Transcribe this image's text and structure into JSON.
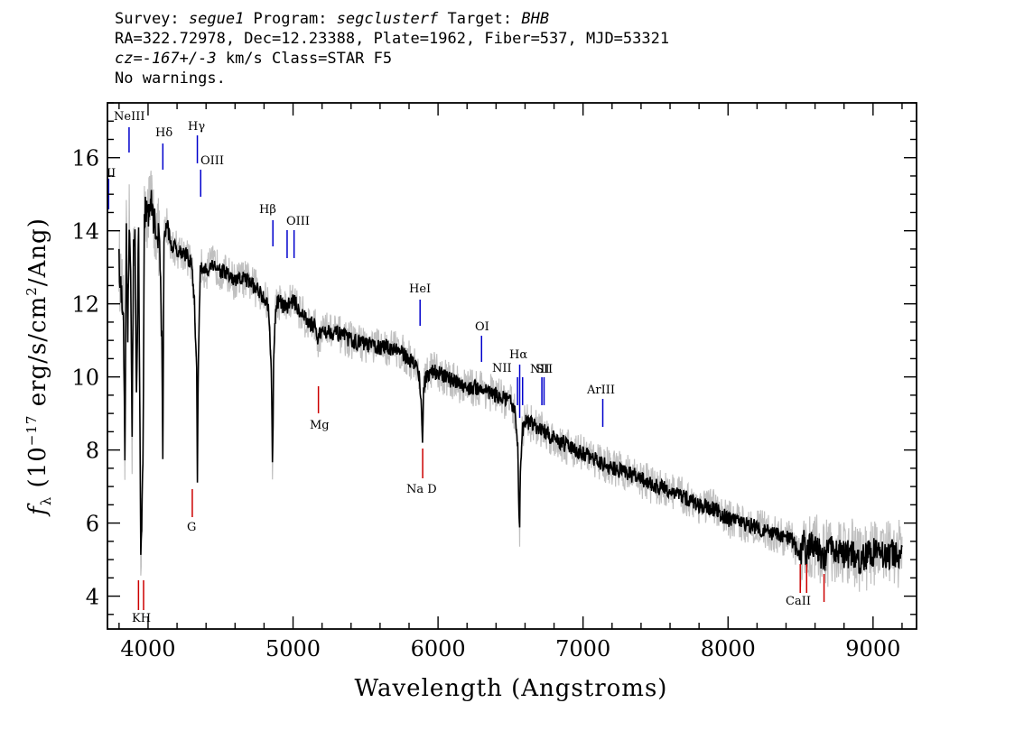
{
  "header": {
    "survey_label": "Survey: ",
    "survey": "segue1",
    "program_label": " Program: ",
    "program": "segclusterf",
    "target_label": " Target: ",
    "target": "BHB",
    "coords": "RA=322.72978, Dec=12.23388, Plate=1962, Fiber=537, MJD=53321",
    "cz": "cz=-167+/-3",
    "cz_units": " km/s Class=STAR F5",
    "warnings": "No warnings."
  },
  "chart_data": {
    "type": "line",
    "xlabel": "Wavelength (Angstroms)",
    "ylabel_prefix": "f",
    "ylabel_sub": "λ",
    "ylabel_mid": " (10",
    "ylabel_exp": "−17",
    "ylabel_rest": " erg/s/cm",
    "ylabel_exp2": "2",
    "ylabel_end": "/Ang)",
    "xlim": [
      3720,
      9300
    ],
    "ylim": [
      3.1,
      17.5
    ],
    "x_ticks": [
      4000,
      5000,
      6000,
      7000,
      8000,
      9000
    ],
    "y_ticks": [
      4,
      6,
      8,
      10,
      12,
      14,
      16
    ],
    "grid": false,
    "colors": {
      "flux": "#000000",
      "error": "#c0c0c0",
      "emission": "#0000cc",
      "absorption": "#cc0000"
    },
    "series": [
      {
        "x": [
          3800,
          3815,
          3830,
          3840,
          3850,
          3860,
          3870,
          3880,
          3890,
          3900,
          3910,
          3920,
          3935,
          3950,
          3965,
          3975,
          3985,
          4000,
          4020,
          4040,
          4060,
          4080,
          4095,
          4102,
          4110,
          4130,
          4160,
          4200,
          4250,
          4300,
          4320,
          4335,
          4340,
          4345,
          4360,
          4400,
          4450,
          4500,
          4550,
          4600,
          4650,
          4700,
          4750,
          4800,
          4830,
          4850,
          4858,
          4862,
          4866,
          4880,
          4900,
          4950,
          5000,
          5050,
          5100,
          5150,
          5170,
          5200,
          5300,
          5400,
          5500,
          5600,
          5700,
          5800,
          5850,
          5870,
          5880,
          5893,
          5900,
          5920,
          5950,
          6000,
          6100,
          6200,
          6300,
          6400,
          6450,
          6500,
          6530,
          6550,
          6558,
          6563,
          6568,
          6580,
          6600,
          6700,
          6800,
          6900,
          7000,
          7100,
          7200,
          7300,
          7400,
          7500,
          7600,
          7700,
          7800,
          7900,
          8000,
          8100,
          8200,
          8300,
          8400,
          8450,
          8498,
          8520,
          8542,
          8560,
          8600,
          8662,
          8700,
          8750,
          8800,
          8850,
          8900,
          8950,
          9000,
          9050,
          9100,
          9150,
          9200
        ],
        "y": [
          13.2,
          12.3,
          12.0,
          7.6,
          13.8,
          11.3,
          14.2,
          12.8,
          8.3,
          13.8,
          14.1,
          9.5,
          13.9,
          5.0,
          8.0,
          14.3,
          14.6,
          14.5,
          14.8,
          14.3,
          14.0,
          13.7,
          11.0,
          7.9,
          13.8,
          14.2,
          13.6,
          13.5,
          13.4,
          13.1,
          12.0,
          10.2,
          7.3,
          9.8,
          13.0,
          12.9,
          13.1,
          12.9,
          12.8,
          12.6,
          12.7,
          12.6,
          12.4,
          12.2,
          11.9,
          10.4,
          7.5,
          8.5,
          10.6,
          11.9,
          12.1,
          11.9,
          12.1,
          11.8,
          11.5,
          11.4,
          11.0,
          11.3,
          11.2,
          11.0,
          10.9,
          10.8,
          10.8,
          10.5,
          10.3,
          10.0,
          9.6,
          8.3,
          9.7,
          10.0,
          10.2,
          10.1,
          9.9,
          9.7,
          9.7,
          9.5,
          9.4,
          9.3,
          9.0,
          8.2,
          6.2,
          5.8,
          7.5,
          8.5,
          8.8,
          8.6,
          8.3,
          8.1,
          7.9,
          7.7,
          7.5,
          7.4,
          7.2,
          7.0,
          6.9,
          6.7,
          6.5,
          6.4,
          6.1,
          6.0,
          5.9,
          5.7,
          5.6,
          5.5,
          5.0,
          5.5,
          5.1,
          5.4,
          5.4,
          5.0,
          5.3,
          5.3,
          5.1,
          5.2,
          5.0,
          5.1,
          5.2,
          5.2,
          5.1,
          5.2,
          5.1
        ]
      }
    ],
    "lines": [
      {
        "label": "II",
        "wave": 3728,
        "type": "emission"
      },
      {
        "label": "NeIII",
        "wave": 3869,
        "type": "emission"
      },
      {
        "label": "Hδ",
        "wave": 4102,
        "type": "emission"
      },
      {
        "label": "Hγ",
        "wave": 4340,
        "type": "emission"
      },
      {
        "label": "OIII",
        "wave": 4363,
        "type": "emission"
      },
      {
        "label": "Hβ",
        "wave": 4861,
        "type": "emission"
      },
      {
        "label": "OIII",
        "wave": 4959,
        "type": "emission"
      },
      {
        "label": "OIII",
        "wave": 5007,
        "type": "emission"
      },
      {
        "label": "HeI",
        "wave": 5876,
        "type": "emission"
      },
      {
        "label": "OI",
        "wave": 6300,
        "type": "emission"
      },
      {
        "label": "NII",
        "wave": 6548,
        "type": "emission"
      },
      {
        "label": "Hα",
        "wave": 6563,
        "type": "emission"
      },
      {
        "label": "NII",
        "wave": 6583,
        "type": "emission"
      },
      {
        "label": "SII",
        "wave": 6716,
        "type": "emission"
      },
      {
        "label": "SII",
        "wave": 6731,
        "type": "emission"
      },
      {
        "label": "ArIII",
        "wave": 7136,
        "type": "emission"
      },
      {
        "label": "K",
        "wave": 3934,
        "type": "absorption"
      },
      {
        "label": "H",
        "wave": 3969,
        "type": "absorption"
      },
      {
        "label": "G",
        "wave": 4305,
        "type": "absorption"
      },
      {
        "label": "Mg",
        "wave": 5175,
        "type": "absorption"
      },
      {
        "label": "Na D",
        "wave": 5894,
        "type": "absorption"
      },
      {
        "label": "CaII",
        "wave": 8498,
        "type": "absorption"
      },
      {
        "label": "CaII",
        "wave": 8542,
        "type": "absorption"
      },
      {
        "label": "CaII",
        "wave": 8662,
        "type": "absorption"
      }
    ],
    "label_text": {
      "II": "II",
      "NeIII": "NeIII",
      "Hdelta": "Hδ",
      "Hgamma": "Hγ",
      "OIII_a": "OIII",
      "Hbeta": "Hβ",
      "OIII_b": "OIII",
      "HeI": "HeI",
      "OI": "OI",
      "NII_a": "NII",
      "Halpha": "Hα",
      "NII_b": "NII",
      "SII": "SII",
      "ArIII": "ArIII",
      "KH": "KH",
      "G": "G",
      "Mg": "Mg",
      "NaD": "Na D",
      "CaII": "CaII"
    }
  }
}
